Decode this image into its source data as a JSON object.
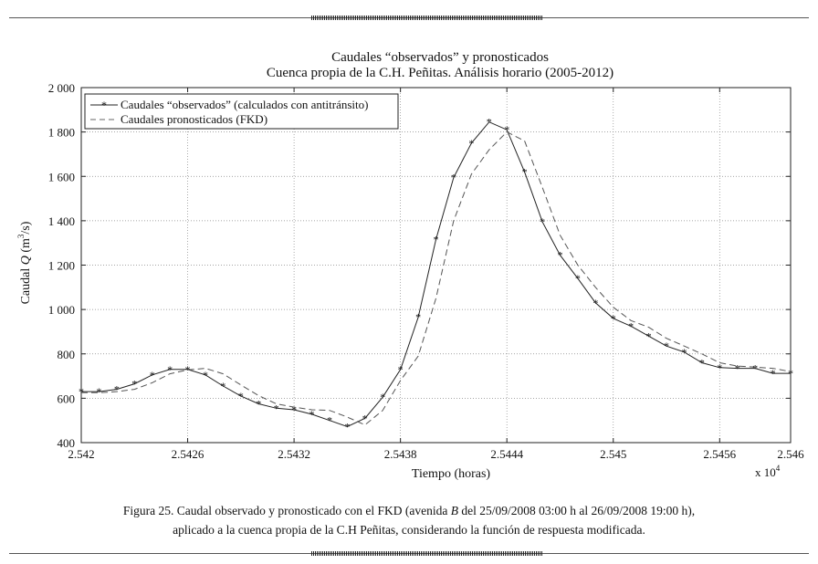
{
  "chart_data": {
    "type": "line",
    "title_line1": "Caudales “observados” y pronosticados",
    "title_line2": "Cuenca propia de la C.H. Peñitas. Análisis horario (2005-2012)",
    "xlabel": "Tiempo (horas)",
    "ylabel_prefix": "Caudal",
    "ylabel_var": "Q",
    "ylabel_units_open": "(m",
    "ylabel_units_exp": "3",
    "ylabel_units_close": "/s)",
    "x_multiplier_base": "x 10",
    "x_multiplier_exp": "4",
    "xlim": [
      2.542,
      2.546
    ],
    "ylim": [
      400,
      2000
    ],
    "x_ticks": [
      2.542,
      2.5426,
      2.5432,
      2.5438,
      2.5444,
      2.545,
      2.5456,
      2.546
    ],
    "x_tick_labels": [
      "2.542",
      "2.5426",
      "2.5432",
      "2.5438",
      "2.5444",
      "2.545",
      "2.5456",
      "2.546"
    ],
    "y_ticks": [
      400,
      600,
      800,
      1000,
      1200,
      1400,
      1600,
      1800,
      2000
    ],
    "y_tick_labels": [
      "400",
      "600",
      "800",
      "1 000",
      "1 200",
      "1 400",
      "1 600",
      "1 800",
      "2 000"
    ],
    "grid": true,
    "legend_position": "top-left",
    "series": [
      {
        "name": "Caudales “observados” (calculados con antitránsito)",
        "style": "solid-star",
        "color": "#222222",
        "x": [
          2.542,
          2.5421,
          2.5422,
          2.5423,
          2.5424,
          2.5425,
          2.5426,
          2.5427,
          2.5428,
          2.5429,
          2.543,
          2.5431,
          2.5432,
          2.5433,
          2.5434,
          2.5435,
          2.5436,
          2.5437,
          2.5438,
          2.5439,
          2.544,
          2.5441,
          2.5442,
          2.5443,
          2.5444,
          2.5445,
          2.5446,
          2.5447,
          2.5448,
          2.5449,
          2.545,
          2.5451,
          2.5452,
          2.5453,
          2.5454,
          2.5455,
          2.5456,
          2.5457,
          2.5458,
          2.5459,
          2.546
        ],
        "y": [
          630,
          630,
          640,
          665,
          705,
          730,
          730,
          705,
          655,
          610,
          575,
          555,
          548,
          528,
          500,
          472,
          510,
          605,
          730,
          965,
          1315,
          1595,
          1750,
          1845,
          1810,
          1620,
          1395,
          1245,
          1140,
          1030,
          960,
          925,
          880,
          835,
          808,
          760,
          738,
          735,
          735,
          712,
          712
        ]
      },
      {
        "name": "Caudales pronosticados (FKD)",
        "style": "dashed",
        "color": "#555555",
        "x": [
          2.542,
          2.5421,
          2.5422,
          2.5423,
          2.5424,
          2.5425,
          2.5426,
          2.5427,
          2.5428,
          2.5429,
          2.543,
          2.5431,
          2.5432,
          2.5433,
          2.5434,
          2.5435,
          2.5436,
          2.5437,
          2.5438,
          2.5439,
          2.544,
          2.5441,
          2.5442,
          2.5443,
          2.5444,
          2.5445,
          2.5446,
          2.5447,
          2.5448,
          2.5449,
          2.545,
          2.5451,
          2.5452,
          2.5453,
          2.5454,
          2.5455,
          2.5456,
          2.5457,
          2.5458,
          2.5459,
          2.546
        ],
        "y": [
          625,
          625,
          630,
          640,
          670,
          710,
          728,
          735,
          710,
          660,
          612,
          575,
          560,
          548,
          545,
          515,
          480,
          545,
          680,
          790,
          1050,
          1400,
          1610,
          1720,
          1800,
          1760,
          1550,
          1335,
          1200,
          1100,
          1010,
          950,
          920,
          870,
          835,
          800,
          760,
          745,
          740,
          735,
          720
        ]
      }
    ]
  },
  "caption": {
    "line1_part1": "Figura 25. Caudal observado y pronosticado con el FKD (avenida",
    "line1_italic": "B",
    "line1_part2": "del 25/09/2008 03:00 h al 26/09/2008 19:00 h),",
    "line2": "aplicado a la cuenca propia de la C.H Peñitas, considerando la función de respuesta modificada."
  }
}
